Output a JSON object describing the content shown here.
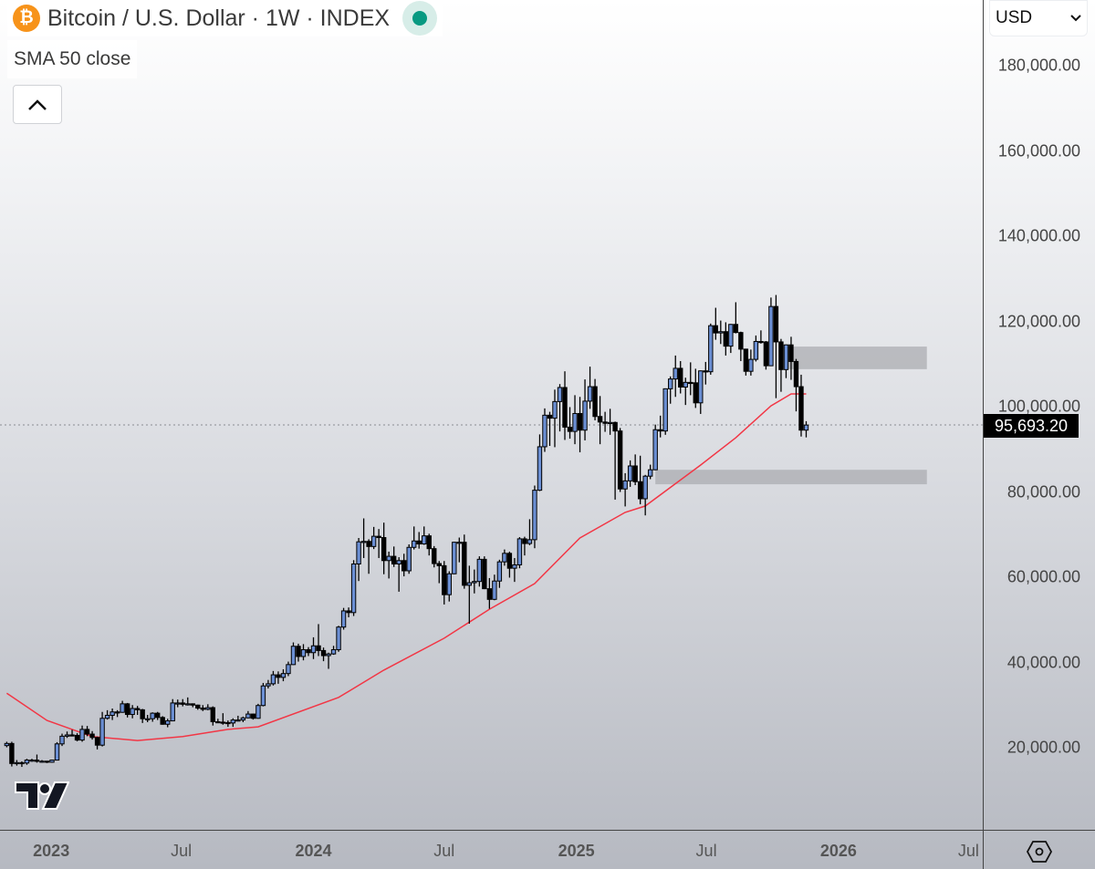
{
  "header": {
    "title": "Bitcoin / U.S. Dollar · 1W · INDEX",
    "logo_glyph": "₿",
    "status": "market-open-dot",
    "status_color": "#089981",
    "indicator": "SMA 50 close",
    "collapse_icon": "chevron-up-icon"
  },
  "currency_select": {
    "value": "USD"
  },
  "last_price_label": "95,693.20",
  "chart_data": {
    "type": "candlestick",
    "symbol": "Bitcoin / U.S. Dollar",
    "interval": "1W",
    "ylim": [
      0,
      190000
    ],
    "y_ticks": [
      {
        "value": 180000,
        "label": "180,000.00"
      },
      {
        "value": 160000,
        "label": "160,000.00"
      },
      {
        "value": 140000,
        "label": "140,000.00"
      },
      {
        "value": 120000,
        "label": "120,000.00"
      },
      {
        "value": 100000,
        "label": "100,000.00"
      },
      {
        "value": 80000,
        "label": "80,000.00"
      },
      {
        "value": 60000,
        "label": "60,000.00"
      },
      {
        "value": 40000,
        "label": "40,000.00"
      },
      {
        "value": 20000,
        "label": "20,000.00"
      }
    ],
    "x_ticks": [
      {
        "date": "2023-01-01",
        "label": "2023",
        "year": true
      },
      {
        "date": "2023-07-01",
        "label": "Jul"
      },
      {
        "date": "2024-01-01",
        "label": "2024",
        "year": true
      },
      {
        "date": "2024-07-01",
        "label": "Jul"
      },
      {
        "date": "2025-01-01",
        "label": "2025",
        "year": true
      },
      {
        "date": "2025-07-01",
        "label": "Jul"
      },
      {
        "date": "2026-01-01",
        "label": "2026",
        "year": true
      },
      {
        "date": "2026-07-01",
        "label": "Jul"
      }
    ],
    "colors": {
      "up_body": "#6b8fd4",
      "down_body": "#000000",
      "wick": "#000000",
      "sma": "#f23645",
      "zone": "#a8aaae"
    },
    "last_price": 95693.2,
    "candles_columns": [
      "date",
      "open",
      "high",
      "low",
      "close"
    ],
    "candles": [
      [
        "2022-10-31",
        20500,
        21400,
        20100,
        21000
      ],
      [
        "2022-11-07",
        21000,
        21400,
        15600,
        16300
      ],
      [
        "2022-11-14",
        16300,
        17100,
        15800,
        16500
      ],
      [
        "2022-11-21",
        16500,
        16800,
        15500,
        16400
      ],
      [
        "2022-11-28",
        16400,
        17400,
        16000,
        17100
      ],
      [
        "2022-12-05",
        17100,
        17400,
        16700,
        17100
      ],
      [
        "2022-12-12",
        17100,
        18400,
        16500,
        16800
      ],
      [
        "2022-12-19",
        16800,
        17100,
        16500,
        16850
      ],
      [
        "2022-12-26",
        16850,
        16900,
        16400,
        16600
      ],
      [
        "2023-01-02",
        16600,
        17200,
        16500,
        17100
      ],
      [
        "2023-01-09",
        17100,
        21300,
        17000,
        20900
      ],
      [
        "2023-01-16",
        20900,
        23300,
        20400,
        22700
      ],
      [
        "2023-01-23",
        22700,
        23800,
        22300,
        23000
      ],
      [
        "2023-01-30",
        23000,
        24200,
        22700,
        22900
      ],
      [
        "2023-02-06",
        22900,
        23400,
        21500,
        21800
      ],
      [
        "2023-02-13",
        21800,
        25200,
        21400,
        24300
      ],
      [
        "2023-02-20",
        24300,
        25100,
        22700,
        23200
      ],
      [
        "2023-02-27",
        23200,
        23900,
        21900,
        22400
      ],
      [
        "2023-03-06",
        22400,
        22600,
        19600,
        20600
      ],
      [
        "2023-03-13",
        20600,
        28400,
        20300,
        26900
      ],
      [
        "2023-03-20",
        26900,
        28800,
        26600,
        27600
      ],
      [
        "2023-03-27",
        27600,
        29200,
        26500,
        28400
      ],
      [
        "2023-04-03",
        28400,
        28800,
        27200,
        28300
      ],
      [
        "2023-04-10",
        28300,
        31000,
        28200,
        30300
      ],
      [
        "2023-04-17",
        30300,
        30500,
        27100,
        27800
      ],
      [
        "2023-04-24",
        27800,
        30000,
        26900,
        29200
      ],
      [
        "2023-05-01",
        29200,
        29800,
        27700,
        28900
      ],
      [
        "2023-05-08",
        28900,
        29100,
        25800,
        26800
      ],
      [
        "2023-05-15",
        26800,
        27700,
        26000,
        26800
      ],
      [
        "2023-05-22",
        26800,
        28300,
        26100,
        28100
      ],
      [
        "2023-05-29",
        28100,
        28400,
        26500,
        27100
      ],
      [
        "2023-06-05",
        27100,
        27400,
        25400,
        25500
      ],
      [
        "2023-06-12",
        25500,
        26800,
        24800,
        26300
      ],
      [
        "2023-06-19",
        26300,
        31400,
        26200,
        30500
      ],
      [
        "2023-06-26",
        30500,
        31300,
        29500,
        30500
      ],
      [
        "2023-07-03",
        30500,
        31400,
        29700,
        30200
      ],
      [
        "2023-07-10",
        30200,
        31800,
        29900,
        30300
      ],
      [
        "2023-07-17",
        30300,
        30400,
        29500,
        30000
      ],
      [
        "2023-07-24",
        30000,
        30100,
        28900,
        29300
      ],
      [
        "2023-07-31",
        29300,
        30000,
        28600,
        29000
      ],
      [
        "2023-08-07",
        29000,
        30200,
        28800,
        29400
      ],
      [
        "2023-08-14",
        29400,
        29700,
        25200,
        26100
      ],
      [
        "2023-08-21",
        26100,
        26800,
        25800,
        26000
      ],
      [
        "2023-08-28",
        26000,
        28100,
        25400,
        25900
      ],
      [
        "2023-09-04",
        25900,
        26400,
        24900,
        25800
      ],
      [
        "2023-09-11",
        25800,
        26900,
        24900,
        26500
      ],
      [
        "2023-09-18",
        26500,
        27500,
        26300,
        26500
      ],
      [
        "2023-09-25",
        26500,
        27300,
        26000,
        27000
      ],
      [
        "2023-10-02",
        27000,
        28600,
        26900,
        27900
      ],
      [
        "2023-10-09",
        27900,
        28000,
        26600,
        26900
      ],
      [
        "2023-10-16",
        26900,
        30300,
        26800,
        29900
      ],
      [
        "2023-10-23",
        29900,
        35200,
        29700,
        34500
      ],
      [
        "2023-10-30",
        34500,
        35900,
        33900,
        35000
      ],
      [
        "2023-11-06",
        35000,
        38000,
        34600,
        37100
      ],
      [
        "2023-11-13",
        37100,
        37900,
        35000,
        36500
      ],
      [
        "2023-11-20",
        36500,
        38400,
        35600,
        37400
      ],
      [
        "2023-11-27",
        37400,
        40200,
        36800,
        39500
      ],
      [
        "2023-12-04",
        39500,
        44700,
        39400,
        43800
      ],
      [
        "2023-12-11",
        43800,
        44400,
        40200,
        41400
      ],
      [
        "2023-12-18",
        41400,
        44300,
        40500,
        43000
      ],
      [
        "2023-12-25",
        43000,
        43600,
        41500,
        42300
      ],
      [
        "2024-01-01",
        42300,
        45900,
        40800,
        43900
      ],
      [
        "2024-01-08",
        43900,
        49000,
        41500,
        42800
      ],
      [
        "2024-01-15",
        42800,
        43500,
        40300,
        41600
      ],
      [
        "2024-01-22",
        41600,
        42300,
        38500,
        42000
      ],
      [
        "2024-01-29",
        42000,
        43900,
        41800,
        43000
      ],
      [
        "2024-02-05",
        43000,
        48600,
        42500,
        48300
      ],
      [
        "2024-02-12",
        48300,
        52800,
        47700,
        52100
      ],
      [
        "2024-02-19",
        52100,
        52900,
        50600,
        51700
      ],
      [
        "2024-02-26",
        51700,
        64000,
        50900,
        63100
      ],
      [
        "2024-03-04",
        63100,
        69200,
        59100,
        68300
      ],
      [
        "2024-03-11",
        68300,
        73800,
        64500,
        68400
      ],
      [
        "2024-03-18",
        68400,
        68900,
        60800,
        67200
      ],
      [
        "2024-03-25",
        67200,
        71800,
        66600,
        69600
      ],
      [
        "2024-04-01",
        69600,
        71300,
        64500,
        69300
      ],
      [
        "2024-04-08",
        69300,
        72800,
        60700,
        63900
      ],
      [
        "2024-04-15",
        63900,
        66000,
        59700,
        64900
      ],
      [
        "2024-04-22",
        64900,
        67200,
        62400,
        63100
      ],
      [
        "2024-04-29",
        63100,
        64700,
        56600,
        63900
      ],
      [
        "2024-05-06",
        63900,
        65500,
        60200,
        61500
      ],
      [
        "2024-05-13",
        61500,
        67700,
        60800,
        67000
      ],
      [
        "2024-05-20",
        67000,
        71900,
        66500,
        68500
      ],
      [
        "2024-05-27",
        68500,
        70600,
        66700,
        67800
      ],
      [
        "2024-06-03",
        67800,
        71900,
        67600,
        69700
      ],
      [
        "2024-06-10",
        69700,
        70200,
        65100,
        66700
      ],
      [
        "2024-06-17",
        66700,
        67300,
        62300,
        63200
      ],
      [
        "2024-06-24",
        63200,
        63800,
        58600,
        62700
      ],
      [
        "2024-07-01",
        62700,
        63800,
        53600,
        55900
      ],
      [
        "2024-07-08",
        55900,
        61400,
        54300,
        60800
      ],
      [
        "2024-07-15",
        60800,
        68300,
        60700,
        68200
      ],
      [
        "2024-07-22",
        68200,
        69300,
        63500,
        68200
      ],
      [
        "2024-07-29",
        68200,
        70000,
        57300,
        58100
      ],
      [
        "2024-08-05",
        58100,
        62700,
        49100,
        58700
      ],
      [
        "2024-08-12",
        58700,
        61800,
        56200,
        59000
      ],
      [
        "2024-08-19",
        59000,
        64900,
        57800,
        64200
      ],
      [
        "2024-08-26",
        64200,
        64900,
        57200,
        57300
      ],
      [
        "2024-09-02",
        57300,
        59800,
        52600,
        54800
      ],
      [
        "2024-09-09",
        54800,
        60600,
        54600,
        59100
      ],
      [
        "2024-09-16",
        59100,
        64100,
        57500,
        63600
      ],
      [
        "2024-09-23",
        63600,
        66500,
        62700,
        65600
      ],
      [
        "2024-09-30",
        65600,
        66000,
        59900,
        62100
      ],
      [
        "2024-10-07",
        62100,
        64500,
        58900,
        62900
      ],
      [
        "2024-10-14",
        62900,
        69400,
        62100,
        69000
      ],
      [
        "2024-10-21",
        69000,
        69500,
        65100,
        67900
      ],
      [
        "2024-10-28",
        67900,
        73600,
        67500,
        68800
      ],
      [
        "2024-11-04",
        68800,
        81500,
        66800,
        80400
      ],
      [
        "2024-11-11",
        80400,
        93500,
        80200,
        90600
      ],
      [
        "2024-11-18",
        90600,
        99600,
        89400,
        98000
      ],
      [
        "2024-11-25",
        98000,
        98800,
        90800,
        97300
      ],
      [
        "2024-12-02",
        97300,
        104000,
        90500,
        101200
      ],
      [
        "2024-12-09",
        101200,
        105300,
        94200,
        104500
      ],
      [
        "2024-12-16",
        104500,
        108300,
        92200,
        95200
      ],
      [
        "2024-12-23",
        95200,
        99900,
        92500,
        94200
      ],
      [
        "2024-12-30",
        94200,
        102700,
        91200,
        98400
      ],
      [
        "2025-01-06",
        98400,
        102300,
        89300,
        94500
      ],
      [
        "2025-01-13",
        94500,
        106400,
        92100,
        101300
      ],
      [
        "2025-01-20",
        101300,
        109400,
        99500,
        104700
      ],
      [
        "2025-01-27",
        104700,
        106500,
        96800,
        97700
      ],
      [
        "2025-02-03",
        97700,
        102500,
        91200,
        96400
      ],
      [
        "2025-02-10",
        96400,
        98800,
        94100,
        96100
      ],
      [
        "2025-02-17",
        96100,
        99500,
        93400,
        96300
      ],
      [
        "2025-02-24",
        96300,
        96500,
        78200,
        94300
      ],
      [
        "2025-03-03",
        94300,
        95000,
        80000,
        80700
      ],
      [
        "2025-03-10",
        80700,
        84400,
        76600,
        82600
      ],
      [
        "2025-03-17",
        82600,
        87400,
        81200,
        86100
      ],
      [
        "2025-03-24",
        86100,
        88800,
        81600,
        82400
      ],
      [
        "2025-03-31",
        82400,
        88500,
        77100,
        78400
      ],
      [
        "2025-04-07",
        78400,
        84000,
        74500,
        83700
      ],
      [
        "2025-04-14",
        83700,
        86400,
        83000,
        85200
      ],
      [
        "2025-04-21",
        85200,
        95800,
        85100,
        94600
      ],
      [
        "2025-04-28",
        94600,
        97900,
        92800,
        94300
      ],
      [
        "2025-05-05",
        94300,
        104300,
        93400,
        104200
      ],
      [
        "2025-05-12",
        104200,
        107100,
        100700,
        106500
      ],
      [
        "2025-05-19",
        106500,
        112000,
        102300,
        109000
      ],
      [
        "2025-05-26",
        109000,
        110700,
        103100,
        104600
      ],
      [
        "2025-06-02",
        104600,
        106800,
        100400,
        105700
      ],
      [
        "2025-06-09",
        105700,
        110400,
        102700,
        105600
      ],
      [
        "2025-06-16",
        105600,
        108900,
        99700,
        100900
      ],
      [
        "2025-06-23",
        100900,
        108500,
        98300,
        108400
      ],
      [
        "2025-06-30",
        108400,
        110500,
        105200,
        108200
      ],
      [
        "2025-07-07",
        108200,
        119500,
        107500,
        119000
      ],
      [
        "2025-07-14",
        119000,
        123200,
        115700,
        117300
      ],
      [
        "2025-07-21",
        117300,
        120200,
        114700,
        117600
      ],
      [
        "2025-07-28",
        117600,
        119800,
        112000,
        114200
      ],
      [
        "2025-08-04",
        114200,
        119400,
        112600,
        119300
      ],
      [
        "2025-08-11",
        119300,
        124500,
        117200,
        117400
      ],
      [
        "2025-08-18",
        117400,
        117600,
        110700,
        113500
      ],
      [
        "2025-08-25",
        113500,
        113600,
        107300,
        108300
      ],
      [
        "2025-09-01",
        108300,
        113400,
        107300,
        111100
      ],
      [
        "2025-09-08",
        111100,
        116700,
        110600,
        115300
      ],
      [
        "2025-09-15",
        115300,
        117900,
        114800,
        115200
      ],
      [
        "2025-09-22",
        115200,
        115400,
        108700,
        109600
      ],
      [
        "2025-09-29",
        109600,
        125600,
        109600,
        123500
      ],
      [
        "2025-10-06",
        123500,
        126200,
        102000,
        115200
      ],
      [
        "2025-10-13",
        115200,
        115900,
        103500,
        108700
      ],
      [
        "2025-10-20",
        108700,
        114600,
        106700,
        114500
      ],
      [
        "2025-10-27",
        114500,
        116400,
        106300,
        110600
      ],
      [
        "2025-11-03",
        110600,
        111200,
        98900,
        104700
      ],
      [
        "2025-11-10",
        104700,
        107500,
        93000,
        94500
      ],
      [
        "2025-11-17",
        94500,
        96600,
        92800,
        95693.2
      ]
    ],
    "sma_50": {
      "name": "SMA 50 close",
      "points": [
        [
          "2022-10-31",
          32800
        ],
        [
          "2022-12-26",
          26400
        ],
        [
          "2023-02-27",
          22600
        ],
        [
          "2023-05-01",
          21700
        ],
        [
          "2023-07-03",
          22600
        ],
        [
          "2023-09-04",
          24300
        ],
        [
          "2023-10-16",
          24900
        ],
        [
          "2024-02-05",
          31800
        ],
        [
          "2024-04-08",
          38200
        ],
        [
          "2024-07-01",
          45700
        ],
        [
          "2024-09-02",
          52500
        ],
        [
          "2024-11-04",
          58500
        ],
        [
          "2025-01-06",
          69200
        ],
        [
          "2025-03-10",
          75200
        ],
        [
          "2025-04-07",
          76700
        ],
        [
          "2025-06-23",
          86300
        ],
        [
          "2025-08-11",
          92700
        ],
        [
          "2025-09-29",
          100200
        ],
        [
          "2025-10-27",
          103000
        ],
        [
          "2025-11-17",
          103000
        ]
      ]
    },
    "zones": [
      {
        "from": "2025-10-20",
        "to": "2026-05-04",
        "low": 108800,
        "high": 114100
      },
      {
        "from": "2025-04-21",
        "to": "2026-05-04",
        "low": 81800,
        "high": 85200
      }
    ]
  },
  "footer": {
    "settings_icon": "hexagon-settings-icon",
    "watermark": "TV"
  }
}
